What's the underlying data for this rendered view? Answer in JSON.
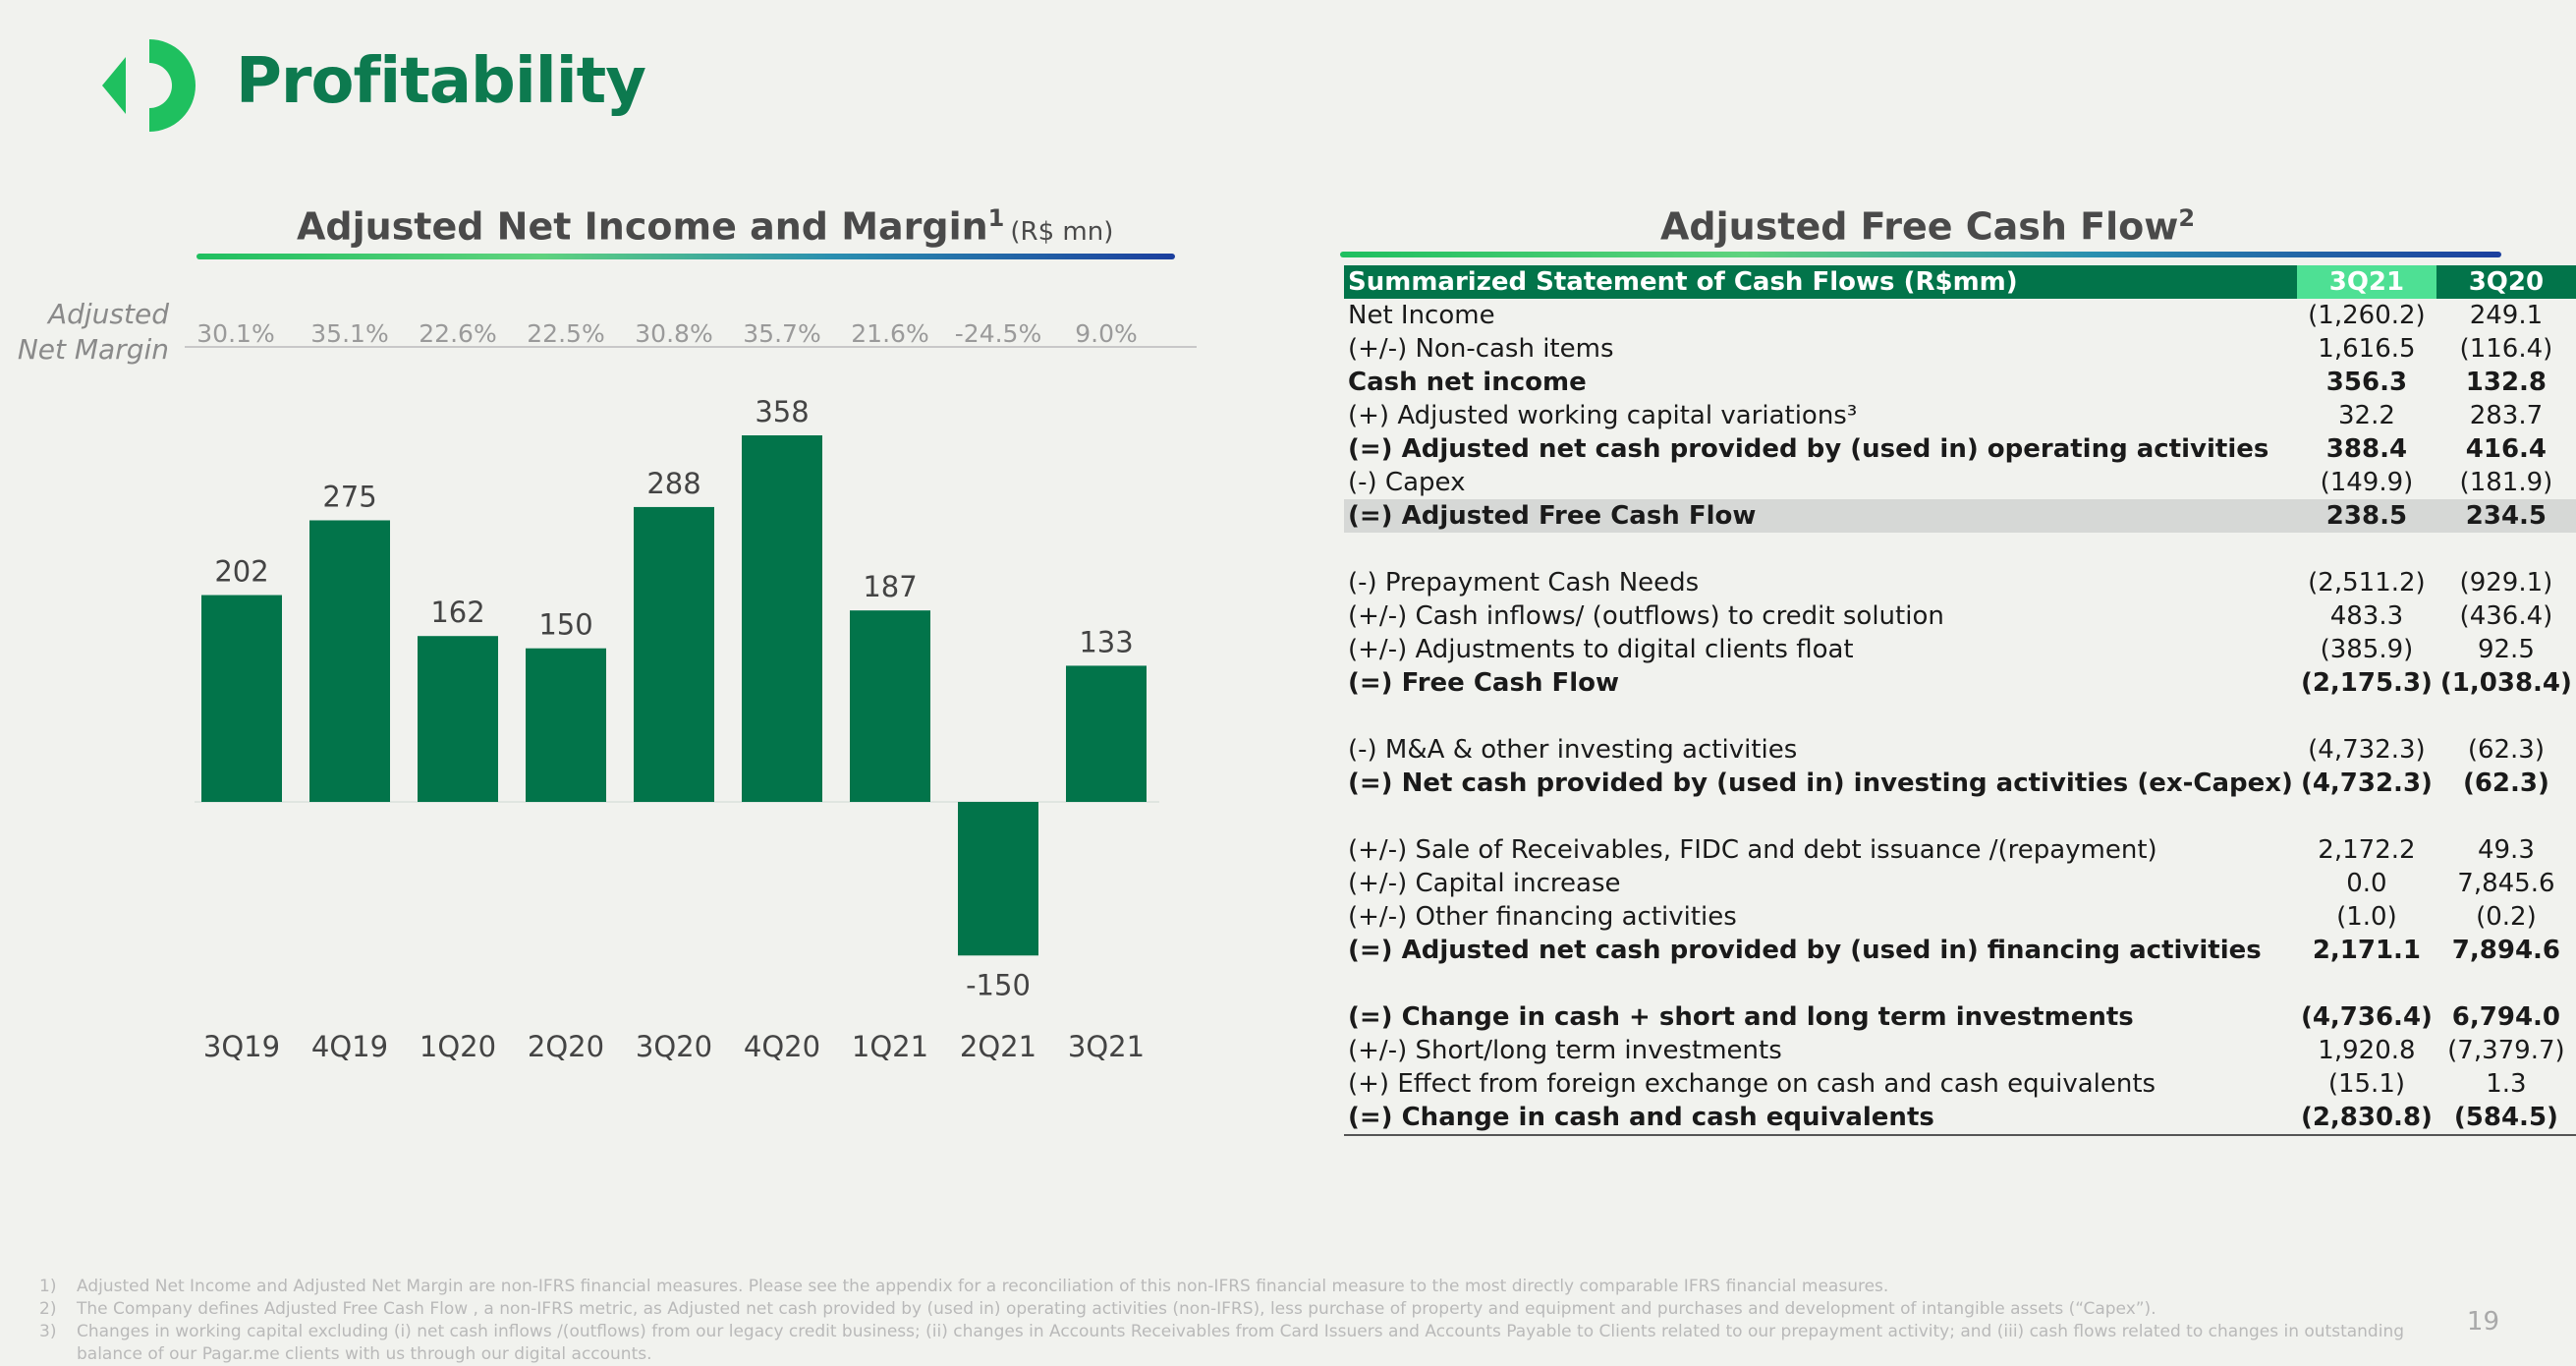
{
  "page": {
    "title": "Profitability",
    "page_number": "19"
  },
  "left_panel": {
    "title": "Adjusted Net Income and Margin",
    "title_sup": "1",
    "unit": "(R$ mn)",
    "margin_label_1": "Adjusted",
    "margin_label_2": "Net Margin"
  },
  "chart_data": {
    "type": "bar",
    "title": "Adjusted Net Income and Margin",
    "categories": [
      "3Q19",
      "4Q19",
      "1Q20",
      "2Q20",
      "3Q20",
      "4Q20",
      "1Q21",
      "2Q21",
      "3Q21"
    ],
    "values": [
      202,
      275,
      162,
      150,
      288,
      358,
      187,
      -150,
      133
    ],
    "data_labels": [
      "202",
      "275",
      "162",
      "150",
      "288",
      "358",
      "187",
      "-150",
      "133"
    ],
    "margins": [
      "30.1%",
      "35.1%",
      "22.6%",
      "22.5%",
      "30.8%",
      "35.7%",
      "21.6%",
      "-24.5%",
      "9.0%"
    ],
    "ylim": [
      -150,
      358
    ],
    "color": "#02744a"
  },
  "right_panel": {
    "title": "Adjusted Free Cash Flow",
    "title_sup": "2",
    "header": {
      "label": "Summarized Statement of Cash Flows (R$mm)",
      "c1": "3Q21",
      "c2": "3Q20"
    },
    "rows": [
      {
        "label": "Net Income",
        "c1": "(1,260.2)",
        "c2": "249.1"
      },
      {
        "label": "(+/-) Non-cash items",
        "c1": "1,616.5",
        "c2": "(116.4)"
      },
      {
        "label": "Cash net income",
        "c1": "356.3",
        "c2": "132.8"
      },
      {
        "label": "(+) Adjusted working capital variations³",
        "c1": "32.2",
        "c2": "283.7"
      },
      {
        "label": "(=) Adjusted net cash provided by (used in) operating activities",
        "c1": "388.4",
        "c2": "416.4"
      },
      {
        "label": "(-) Capex",
        "c1": "(149.9)",
        "c2": "(181.9)"
      },
      {
        "label": "(=) Adjusted Free Cash Flow",
        "c1": "238.5",
        "c2": "234.5"
      },
      {
        "label": "",
        "c1": "",
        "c2": ""
      },
      {
        "label": "(-) Prepayment Cash Needs",
        "c1": "(2,511.2)",
        "c2": "(929.1)"
      },
      {
        "label": "(+/-) Cash inflows/ (outflows) to credit solution",
        "c1": "483.3",
        "c2": "(436.4)"
      },
      {
        "label": "(+/-) Adjustments to digital clients float",
        "c1": "(385.9)",
        "c2": "92.5"
      },
      {
        "label": "(=) Free Cash Flow",
        "c1": "(2,175.3)",
        "c2": "(1,038.4)"
      },
      {
        "label": "",
        "c1": "",
        "c2": ""
      },
      {
        "label": "(-) M&A & other investing activities",
        "c1": "(4,732.3)",
        "c2": "(62.3)"
      },
      {
        "label": "(=) Net cash provided by (used in) investing activities (ex-Capex)",
        "c1": "(4,732.3)",
        "c2": "(62.3)"
      },
      {
        "label": "",
        "c1": "",
        "c2": ""
      },
      {
        "label": "(+/-) Sale of Receivables, FIDC and debt issuance /(repayment)",
        "c1": "2,172.2",
        "c2": "49.3"
      },
      {
        "label": "(+/-) Capital increase",
        "c1": "0.0",
        "c2": "7,845.6"
      },
      {
        "label": "(+/-) Other financing activities",
        "c1": "(1.0)",
        "c2": "(0.2)"
      },
      {
        "label": "(=) Adjusted net cash provided by (used in) financing activities",
        "c1": "2,171.1",
        "c2": "7,894.6"
      },
      {
        "label": "",
        "c1": "",
        "c2": ""
      },
      {
        "label": "(=) Change in cash + short and long term investments",
        "c1": "(4,736.4)",
        "c2": "6,794.0"
      },
      {
        "label": "(+/-) Short/long term investments",
        "c1": "1,920.8",
        "c2": "(7,379.7)"
      },
      {
        "label": "(+) Effect from foreign exchange on cash and cash equivalents",
        "c1": "(15.1)",
        "c2": "1.3"
      },
      {
        "label": "(=) Change in cash and cash equivalents",
        "c1": "(2,830.8)",
        "c2": "(584.5)"
      }
    ]
  },
  "footnotes": [
    {
      "num": "1)",
      "text": "Adjusted Net Income and Adjusted Net Margin are non-IFRS financial measures. Please see the appendix for a reconciliation of this non-IFRS financial measure to the most directly comparable IFRS financial measures."
    },
    {
      "num": "2)",
      "text": "The Company defines Adjusted Free Cash Flow , a non-IFRS metric, as Adjusted net cash provided by (used in) operating activities (non-IFRS), less purchase of property and equipment and purchases and development of intangible assets (“Capex”)."
    },
    {
      "num": "3)",
      "text": "Changes in working capital excluding (i) net cash inflows /(outflows) from our legacy credit business; (ii) changes in Accounts Receivables from Card Issuers and Accounts Payable to Clients related to our prepayment activity; and (iii) cash flows related to changes in outstanding balance of our Pagar.me clients with us through our digital accounts."
    }
  ]
}
